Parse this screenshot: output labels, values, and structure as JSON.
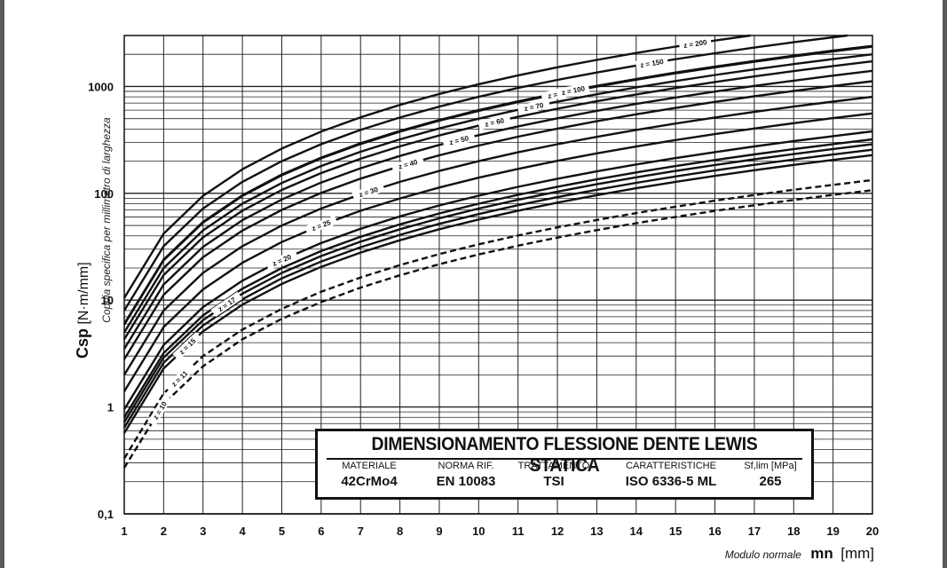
{
  "chart_data": {
    "type": "line",
    "title": "",
    "xlabel": "mn",
    "xlabel_desc": "Modulo normale",
    "xlabel_unit": "[mm]",
    "ylabel": "Csp",
    "ylabel_unit": "[N·m/mm]",
    "ylabel_desc": "Coppia specifica per millimetro di larghezza",
    "xlim": [
      1,
      20
    ],
    "ylim": [
      0.1,
      3000
    ],
    "yscale": "log",
    "grid": true,
    "xticks": [
      "1",
      "2",
      "3",
      "4",
      "5",
      "6",
      "7",
      "8",
      "9",
      "10",
      "11",
      "12",
      "13",
      "14",
      "15",
      "16",
      "17",
      "18",
      "19",
      "20"
    ],
    "yticks": [
      "0,1",
      "1",
      "10",
      "100",
      "1000"
    ],
    "x": [
      1,
      2,
      3,
      4,
      5,
      6,
      7,
      8,
      9,
      10,
      11,
      12,
      13,
      14,
      15,
      16,
      17,
      18,
      19,
      20
    ],
    "series": [
      {
        "name": "z = 10",
        "style": "dashed",
        "values": [
          0.27,
          1.07,
          2.4,
          4.3,
          6.7,
          9.6,
          13.1,
          17.1,
          21.7,
          26.8,
          32.4,
          38.5,
          45.2,
          52.5,
          60.2,
          68.5,
          77.3,
          86.7,
          96.6,
          107
        ]
      },
      {
        "name": "z = 11",
        "style": "dashed",
        "values": [
          0.33,
          1.34,
          3.0,
          5.3,
          8.3,
          12.0,
          16.3,
          21.3,
          27.0,
          33.3,
          40.3,
          48.0,
          56.3,
          65.3,
          75.0,
          85.3,
          96.3,
          108,
          120,
          133
        ]
      },
      {
        "name": "z = 15",
        "style": "solid",
        "values": [
          0.57,
          2.3,
          5.1,
          9.1,
          14.2,
          20.5,
          27.9,
          36.4,
          46.1,
          56.9,
          68.8,
          81.9,
          96.2,
          111.5,
          128,
          145.7,
          164.5,
          184.4,
          205.5,
          227.7
        ]
      },
      {
        "name": "",
        "style": "solid",
        "values": [
          0.64,
          2.6,
          5.8,
          10.2,
          16.0,
          23.0,
          31.3,
          40.9,
          51.8,
          64.0,
          77.4,
          92.1,
          108.1,
          125.4,
          143.9,
          163.7,
          184.8,
          207.2,
          230.8,
          255.8
        ]
      },
      {
        "name": "z = 17",
        "style": "solid",
        "values": [
          0.72,
          2.9,
          6.5,
          11.5,
          18.0,
          25.9,
          35.3,
          46.1,
          58.3,
          72.0,
          87.1,
          103.7,
          121.7,
          141.1,
          162,
          184.3,
          208,
          233.2,
          259.9,
          288
        ]
      },
      {
        "name": "",
        "style": "solid",
        "values": [
          0.8,
          3.2,
          7.2,
          12.8,
          20.0,
          28.8,
          39.2,
          51.2,
          64.8,
          80.0,
          96.8,
          115.2,
          135.2,
          156.8,
          180,
          204.8,
          231.2,
          259.2,
          288.8,
          320
        ]
      },
      {
        "name": "z = 20",
        "style": "solid",
        "values": [
          0.95,
          3.8,
          8.6,
          15.2,
          23.8,
          34.2,
          46.6,
          60.8,
          77.0,
          95.0,
          115,
          136.8,
          160.6,
          186.2,
          213.8,
          243.2,
          274.6,
          307.8,
          343,
          380
        ]
      },
      {
        "name": "z = 25",
        "style": "solid",
        "values": [
          1.4,
          5.6,
          12.6,
          22.4,
          35,
          50.4,
          68.6,
          89.6,
          113.4,
          140,
          169.4,
          201.6,
          236.6,
          274.4,
          315,
          358.4,
          404.6,
          453.6,
          505.4,
          560
        ]
      },
      {
        "name": "z = 30",
        "style": "solid",
        "values": [
          2.0,
          8.0,
          18,
          32,
          50,
          72,
          98,
          128,
          162,
          200,
          242,
          288,
          338,
          392,
          450,
          512,
          578,
          648,
          722,
          800
        ]
      },
      {
        "name": "z = 40",
        "style": "solid",
        "values": [
          2.8,
          11.2,
          25.2,
          44.8,
          70,
          100.8,
          137.2,
          179.2,
          226.8,
          280,
          338.8,
          403.2,
          473.2,
          548.8,
          630,
          716.8,
          809.2,
          907.2,
          1010.8,
          1120
        ]
      },
      {
        "name": "z = 50",
        "style": "solid",
        "values": [
          3.5,
          14,
          31.5,
          56,
          87.5,
          126,
          171.5,
          224,
          283.5,
          350,
          423.5,
          504,
          591.5,
          686,
          787.5,
          896,
          1011.5,
          1134,
          1263.5,
          1400
        ]
      },
      {
        "name": "z = 60",
        "style": "solid",
        "values": [
          4.3,
          17.2,
          38.7,
          68.8,
          107.5,
          154.8,
          210.7,
          275.2,
          348.3,
          430,
          520.3,
          619.2,
          726.7,
          842.8,
          967.5,
          1100.8,
          1242.7,
          1393.2,
          1552.3,
          1720
        ]
      },
      {
        "name": "z = 70",
        "style": "solid",
        "values": [
          5.0,
          20,
          45,
          80,
          125,
          180,
          245,
          320,
          405,
          500,
          605,
          720,
          845,
          980,
          1125,
          1280,
          1445,
          1620,
          1805,
          2000
        ]
      },
      {
        "name": "z = 80",
        "style": "solid",
        "values": [
          5.9,
          23.6,
          53.1,
          94.4,
          147.5,
          212.4,
          289.1,
          377.6,
          477.9,
          590,
          713.9,
          849.6,
          997.1,
          1156.4,
          1327.5,
          1510.4,
          1705.1,
          1911.6,
          2129.9,
          2360
        ]
      },
      {
        "name": "z = 100",
        "style": "solid",
        "values": [
          6.0,
          24,
          54,
          96,
          150,
          216,
          294,
          384,
          486,
          600,
          726,
          864,
          1014,
          1176,
          1350,
          1536,
          1734,
          1944,
          2166,
          2400
        ]
      },
      {
        "name": "z = 150",
        "style": "solid",
        "values": [
          8.0,
          32,
          72,
          128,
          200,
          288,
          392,
          512,
          648,
          800,
          968,
          1152,
          1352,
          1568,
          1800,
          2048,
          2312,
          2592,
          2888,
          3200
        ]
      },
      {
        "name": "z = 200",
        "style": "solid",
        "values": [
          10.5,
          42,
          94.5,
          168,
          262.5,
          378,
          514.5,
          672,
          850.5,
          1050,
          1270.5,
          1512,
          1774.5,
          2058,
          2362.5,
          2688,
          3034.5,
          3402,
          3790.5,
          4200
        ]
      }
    ]
  },
  "infobox": {
    "title": "DIMENSIONAMENTO FLESSIONE DENTE LEWIS STATICA",
    "columns": [
      {
        "header": "MATERIALE",
        "value": "42CrMo4"
      },
      {
        "header": "NORMA RIF.",
        "value": "EN 10083"
      },
      {
        "header": "TRATTAMENTO",
        "value": "TSI"
      },
      {
        "header": "CARATTERISTICHE",
        "value": "ISO 6336-5 ML"
      },
      {
        "header": "Sf,lim [MPa]",
        "value": "265"
      }
    ]
  },
  "colors": {
    "line": "#111111",
    "grid": "#222222",
    "frame": "#5a5a5a"
  }
}
